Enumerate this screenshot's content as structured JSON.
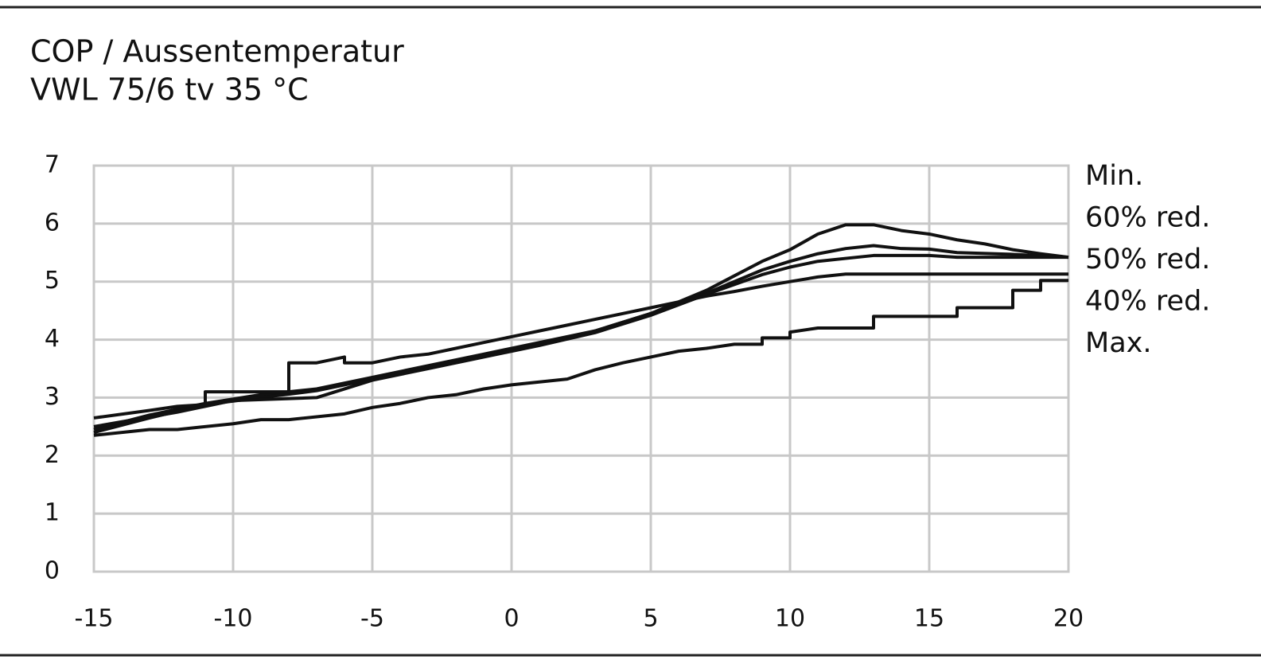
{
  "chart_data": {
    "type": "line",
    "title": "COP / Aussentemperatur",
    "subtitle": "VWL 75/6 tv 35 °C",
    "xlim": [
      -15,
      20
    ],
    "xticks": [
      -15,
      -10,
      -5,
      0,
      5,
      10,
      15,
      20
    ],
    "ylim": [
      0,
      7
    ],
    "yticks": [
      0,
      1,
      2,
      3,
      4,
      5,
      6,
      7
    ],
    "grid": true,
    "legend": "right",
    "series": [
      {
        "name": "Min.",
        "color": "#111111",
        "x": [
          -15,
          -13,
          -11,
          -9,
          -7,
          -5,
          -3,
          -1,
          1,
          3,
          5,
          7,
          8,
          9,
          10,
          11,
          12,
          13,
          14,
          15,
          16,
          17,
          18,
          19,
          20
        ],
        "values": [
          2.45,
          2.7,
          2.9,
          3.05,
          3.15,
          3.35,
          3.55,
          3.75,
          3.95,
          4.15,
          4.45,
          4.85,
          5.1,
          5.35,
          5.55,
          5.82,
          5.98,
          5.98,
          5.88,
          5.82,
          5.72,
          5.65,
          5.55,
          5.48,
          5.42
        ]
      },
      {
        "name": "60% red.",
        "color": "#111111",
        "x": [
          -15,
          -13,
          -11,
          -9,
          -7,
          -5,
          -3,
          -1,
          1,
          3,
          5,
          7,
          9,
          10,
          11,
          12,
          13,
          14,
          15,
          16,
          18,
          20
        ],
        "values": [
          2.4,
          2.65,
          2.88,
          3.0,
          3.12,
          3.32,
          3.52,
          3.72,
          3.92,
          4.15,
          4.45,
          4.8,
          5.2,
          5.35,
          5.48,
          5.57,
          5.62,
          5.57,
          5.56,
          5.5,
          5.47,
          5.42
        ]
      },
      {
        "name": "50% red.",
        "color": "#111111",
        "x": [
          -15,
          -12,
          -10,
          -7,
          -5,
          -3,
          -1,
          1,
          3,
          5,
          7,
          9,
          10,
          11,
          12,
          13,
          15,
          16,
          20
        ],
        "values": [
          2.5,
          2.75,
          2.95,
          3.0,
          3.3,
          3.5,
          3.7,
          3.9,
          4.12,
          4.42,
          4.78,
          5.12,
          5.25,
          5.35,
          5.4,
          5.45,
          5.45,
          5.42,
          5.42
        ]
      },
      {
        "name": "40% red.",
        "color": "#111111",
        "x": [
          -15,
          -13,
          -12,
          -11,
          -11,
          -8,
          -8,
          -7,
          -6,
          -6,
          -5,
          -4,
          -3,
          -2,
          -1,
          0,
          1,
          2,
          3,
          4,
          5,
          6,
          7,
          8,
          9,
          10,
          11,
          12,
          13,
          20
        ],
        "values": [
          2.65,
          2.78,
          2.85,
          2.88,
          3.1,
          3.1,
          3.6,
          3.6,
          3.7,
          3.6,
          3.6,
          3.7,
          3.75,
          3.85,
          3.95,
          4.05,
          4.15,
          4.25,
          4.35,
          4.45,
          4.55,
          4.65,
          4.75,
          4.83,
          4.92,
          5.0,
          5.08,
          5.13,
          5.13,
          5.13
        ]
      },
      {
        "name": "Max.",
        "color": "#111111",
        "x": [
          -15,
          -13,
          -12,
          -10,
          -9,
          -8,
          -6,
          -5,
          -4,
          -3,
          -2,
          -1,
          0,
          2,
          3,
          4,
          5,
          6,
          7,
          8,
          9,
          9,
          10,
          10,
          11,
          13,
          13,
          16,
          16,
          18,
          18,
          19,
          19,
          20
        ],
        "values": [
          2.35,
          2.45,
          2.45,
          2.55,
          2.62,
          2.62,
          2.72,
          2.83,
          2.9,
          3.0,
          3.05,
          3.15,
          3.22,
          3.32,
          3.48,
          3.6,
          3.7,
          3.8,
          3.85,
          3.92,
          3.92,
          4.03,
          4.03,
          4.13,
          4.2,
          4.2,
          4.4,
          4.4,
          4.55,
          4.55,
          4.85,
          4.85,
          5.02,
          5.02
        ]
      }
    ]
  }
}
